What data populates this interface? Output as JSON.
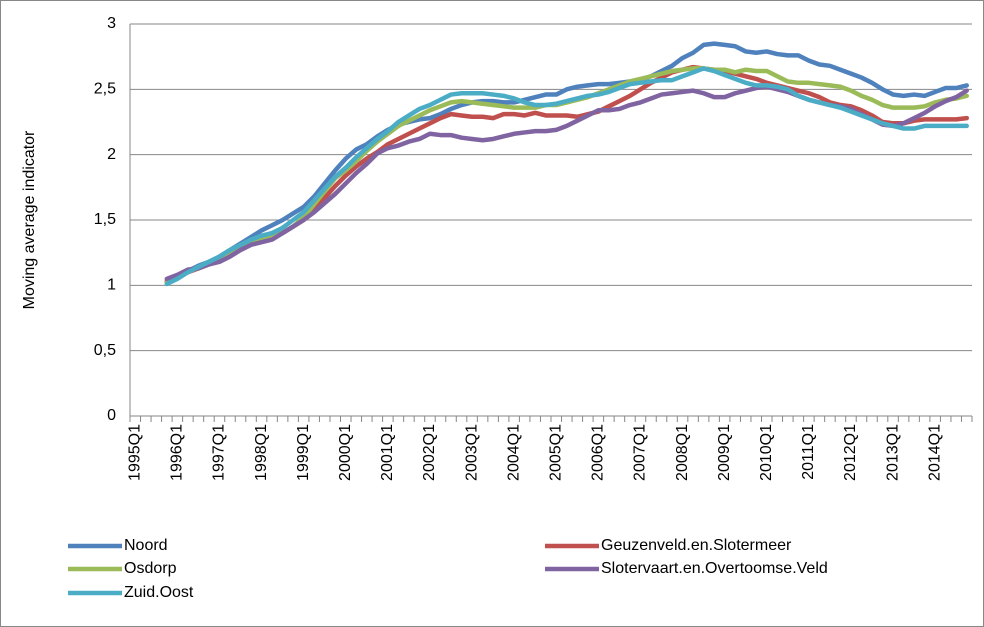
{
  "chart_data": {
    "type": "line",
    "y_label": "Moving average indicator",
    "categories": [
      "1995Q1",
      null,
      null,
      null,
      "1996Q1",
      null,
      null,
      null,
      "1997Q1",
      null,
      null,
      null,
      "1998Q1",
      null,
      null,
      null,
      "1999Q1",
      null,
      null,
      null,
      "2000Q1",
      null,
      null,
      null,
      "2001Q1",
      null,
      null,
      null,
      "2002Q1",
      null,
      null,
      null,
      "2003Q1",
      null,
      null,
      null,
      "2004Q1",
      null,
      null,
      null,
      "2005Q1",
      null,
      null,
      null,
      "2006Q1",
      null,
      null,
      null,
      "2007Q1",
      null,
      null,
      null,
      "2008Q1",
      null,
      null,
      null,
      "2009Q1",
      null,
      null,
      null,
      "2010Q1",
      null,
      null,
      null,
      "2011Q1",
      null,
      null,
      null,
      "2012Q1",
      null,
      null,
      null,
      "2013Q1",
      null,
      null,
      null,
      "2014Q1",
      null,
      null,
      null
    ],
    "ylim": [
      0,
      3
    ],
    "yticks": [
      0,
      {
        "value": 0.5,
        "label": "0,5"
      },
      1,
      {
        "value": 1.5,
        "label": "1,5"
      },
      2,
      {
        "value": 2.5,
        "label": "2,5"
      },
      3
    ],
    "grid": true,
    "legend": "bottom",
    "series": [
      {
        "name": "Noord",
        "color": "#4f81bd",
        "values": [
          null,
          null,
          null,
          1.03,
          1.07,
          1.11,
          1.15,
          1.18,
          1.22,
          1.27,
          1.32,
          1.37,
          1.42,
          1.46,
          1.5,
          1.55,
          1.6,
          1.68,
          1.78,
          1.88,
          1.97,
          2.04,
          2.08,
          2.14,
          2.19,
          2.23,
          2.25,
          2.27,
          2.28,
          2.31,
          2.35,
          2.38,
          2.4,
          2.41,
          2.41,
          2.4,
          2.4,
          2.42,
          2.44,
          2.46,
          2.46,
          2.5,
          2.52,
          2.53,
          2.54,
          2.54,
          2.55,
          2.56,
          2.57,
          2.6,
          2.64,
          2.68,
          2.74,
          2.78,
          2.84,
          2.85,
          2.84,
          2.83,
          2.79,
          2.78,
          2.79,
          2.77,
          2.76,
          2.76,
          2.72,
          2.69,
          2.68,
          2.65,
          2.62,
          2.59,
          2.55,
          2.5,
          2.46,
          2.45,
          2.46,
          2.45,
          2.48,
          2.51,
          2.51,
          2.53
        ]
      },
      {
        "name": "Geuzenveld.en.Slotermeer",
        "color": "#c0504d",
        "values": [
          null,
          null,
          null,
          1.03,
          1.07,
          1.1,
          1.13,
          1.16,
          1.2,
          1.24,
          1.29,
          1.33,
          1.35,
          1.37,
          1.4,
          1.45,
          1.5,
          1.58,
          1.67,
          1.76,
          1.84,
          1.91,
          1.97,
          2.02,
          2.08,
          2.12,
          2.16,
          2.2,
          2.24,
          2.28,
          2.31,
          2.3,
          2.29,
          2.29,
          2.28,
          2.31,
          2.31,
          2.3,
          2.32,
          2.3,
          2.3,
          2.3,
          2.29,
          2.31,
          2.33,
          2.37,
          2.41,
          2.45,
          2.5,
          2.55,
          2.59,
          2.63,
          2.65,
          2.67,
          2.66,
          2.65,
          2.64,
          2.62,
          2.6,
          2.58,
          2.55,
          2.53,
          2.51,
          2.49,
          2.47,
          2.44,
          2.4,
          2.38,
          2.37,
          2.34,
          2.3,
          2.25,
          2.24,
          2.24,
          2.26,
          2.27,
          2.27,
          2.27,
          2.27,
          2.28
        ]
      },
      {
        "name": "Osdorp",
        "color": "#9bbb59",
        "values": [
          null,
          null,
          null,
          1.02,
          1.06,
          1.1,
          1.14,
          1.17,
          1.21,
          1.26,
          1.31,
          1.34,
          1.35,
          1.37,
          1.4,
          1.45,
          1.52,
          1.62,
          1.72,
          1.82,
          1.88,
          1.95,
          2.03,
          2.1,
          2.16,
          2.22,
          2.26,
          2.3,
          2.34,
          2.37,
          2.4,
          2.41,
          2.4,
          2.39,
          2.38,
          2.37,
          2.36,
          2.36,
          2.36,
          2.38,
          2.38,
          2.4,
          2.42,
          2.44,
          2.47,
          2.5,
          2.53,
          2.56,
          2.58,
          2.6,
          2.62,
          2.64,
          2.65,
          2.66,
          2.66,
          2.65,
          2.65,
          2.63,
          2.65,
          2.64,
          2.64,
          2.6,
          2.56,
          2.55,
          2.55,
          2.54,
          2.53,
          2.52,
          2.49,
          2.45,
          2.42,
          2.38,
          2.36,
          2.36,
          2.36,
          2.37,
          2.4,
          2.42,
          2.43,
          2.45
        ]
      },
      {
        "name": "Slotervaart.en.Overtoomse.Veld",
        "color": "#8064a2",
        "values": [
          null,
          null,
          null,
          1.05,
          1.08,
          1.12,
          1.13,
          1.16,
          1.18,
          1.22,
          1.27,
          1.31,
          1.33,
          1.35,
          1.4,
          1.45,
          1.5,
          1.56,
          1.63,
          1.7,
          1.78,
          1.86,
          1.93,
          2.01,
          2.05,
          2.07,
          2.1,
          2.12,
          2.16,
          2.15,
          2.15,
          2.13,
          2.12,
          2.11,
          2.12,
          2.14,
          2.16,
          2.17,
          2.18,
          2.18,
          2.19,
          2.22,
          2.26,
          2.3,
          2.34,
          2.34,
          2.35,
          2.38,
          2.4,
          2.43,
          2.46,
          2.47,
          2.48,
          2.49,
          2.47,
          2.44,
          2.44,
          2.47,
          2.49,
          2.51,
          2.52,
          2.5,
          2.48,
          2.45,
          2.42,
          2.4,
          2.38,
          2.37,
          2.35,
          2.31,
          2.27,
          2.23,
          2.22,
          2.24,
          2.28,
          2.32,
          2.37,
          2.41,
          2.44,
          2.49
        ]
      },
      {
        "name": "Zuid.Oost",
        "color": "#4bacc6",
        "values": [
          null,
          null,
          null,
          1.01,
          1.05,
          1.1,
          1.14,
          1.18,
          1.22,
          1.27,
          1.31,
          1.35,
          1.38,
          1.4,
          1.44,
          1.5,
          1.56,
          1.65,
          1.74,
          1.83,
          1.9,
          1.98,
          2.05,
          2.12,
          2.18,
          2.25,
          2.3,
          2.35,
          2.38,
          2.42,
          2.46,
          2.47,
          2.47,
          2.47,
          2.46,
          2.45,
          2.43,
          2.4,
          2.38,
          2.38,
          2.39,
          2.41,
          2.43,
          2.45,
          2.46,
          2.48,
          2.51,
          2.54,
          2.55,
          2.56,
          2.57,
          2.57,
          2.6,
          2.63,
          2.66,
          2.64,
          2.61,
          2.58,
          2.55,
          2.53,
          2.53,
          2.52,
          2.5,
          2.45,
          2.42,
          2.4,
          2.38,
          2.36,
          2.33,
          2.3,
          2.27,
          2.24,
          2.22,
          2.2,
          2.2,
          2.22,
          2.22,
          2.22,
          2.22,
          2.22
        ]
      }
    ]
  }
}
